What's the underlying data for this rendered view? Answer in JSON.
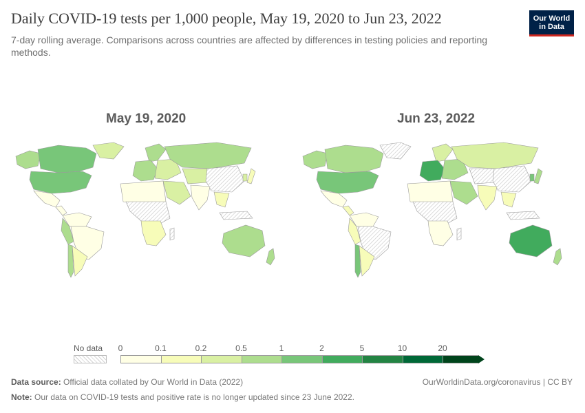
{
  "header": {
    "title": "Daily COVID-19 tests per 1,000 people, May 19, 2020 to Jun 23, 2022",
    "subtitle": "7-day rolling average. Comparisons across countries are affected by differences in testing policies and reporting methods.",
    "logo_line1": "Our World",
    "logo_line2": "in Data"
  },
  "maps": {
    "left_title": "May 19, 2020",
    "right_title": "Jun 23, 2022"
  },
  "colors": {
    "nodata": "#ebebeb",
    "bins": [
      "#ffffe5",
      "#f7fcb9",
      "#d9f0a3",
      "#addd8e",
      "#78c679",
      "#41ab5d",
      "#238443",
      "#006837",
      "#00441b"
    ]
  },
  "legend": {
    "nodata_label": "No data",
    "ticks": [
      "0",
      "0.1",
      "0.2",
      "0.5",
      "1",
      "2",
      "5",
      "10",
      "20"
    ]
  },
  "regions_2020": {
    "north_america": 5,
    "usa": 5,
    "alaska": 4,
    "greenland": 3,
    "mexico": 1,
    "central_america": 1,
    "south_america_north": 1,
    "brazil": 1,
    "peru": 4,
    "chile": 4,
    "argentina": 2,
    "europe_west": 4,
    "europe_east": 3,
    "scandinavia": 4,
    "russia": 4,
    "central_asia": 3,
    "middle_east": 3,
    "china": 0,
    "india": 1,
    "southeast_asia": 2,
    "indonesia": 0,
    "japan": 2,
    "korea": 3,
    "north_africa": 1,
    "central_africa": 0,
    "southern_africa": 2,
    "madagascar": 0,
    "australia": 4,
    "new_zealand": 4
  },
  "regions_2022": {
    "north_america": 4,
    "usa": 5,
    "alaska": 4,
    "greenland": 0,
    "mexico": 1,
    "central_america": 2,
    "south_america_north": 1,
    "brazil": 0,
    "peru": 2,
    "chile": 5,
    "argentina": 2,
    "europe_west": 6,
    "europe_east": 4,
    "scandinavia": 3,
    "russia": 3,
    "central_asia": 0,
    "middle_east": 4,
    "china": 0,
    "india": 2,
    "southeast_asia": 2,
    "indonesia": 0,
    "japan": 4,
    "korea": 5,
    "north_africa": 1,
    "central_africa": 0,
    "southern_africa": 1,
    "madagascar": 0,
    "australia": 6,
    "new_zealand": 4
  },
  "footer": {
    "source_label": "Data source:",
    "source_text": "Official data collated by Our World in Data (2022)",
    "url": "OurWorldinData.org/coronavirus | CC BY",
    "note_label": "Note:",
    "note_text": "Our data on COVID-19 tests and positive rate is no longer updated since 23 June 2022."
  }
}
